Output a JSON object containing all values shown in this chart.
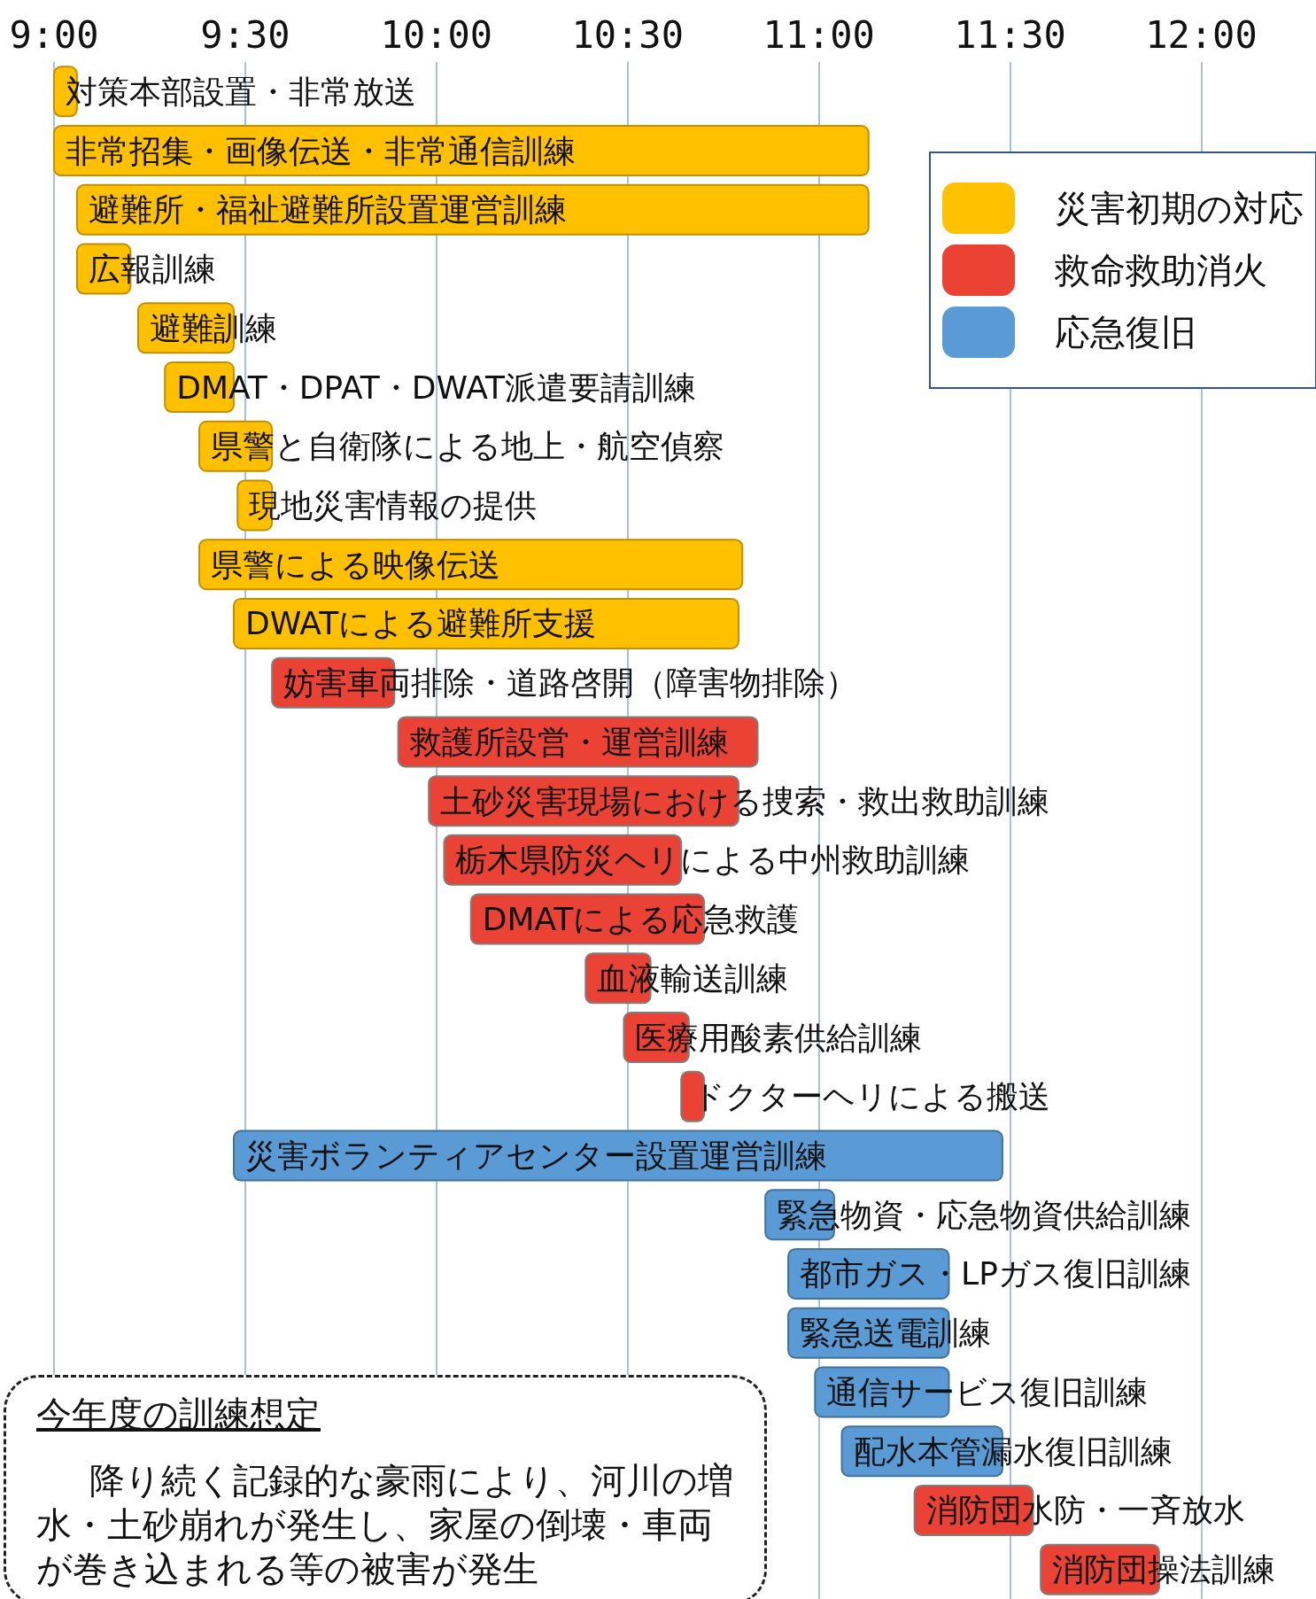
{
  "chart_data": {
    "type": "bar",
    "orientation": "horizontal",
    "tick_labels": "x",
    "grid": "x",
    "legend": "top right",
    "categories": [
      "対策本部設置・非常放送",
      "非常招集・画像伝送・非常通信訓練",
      "避難所・福祉避難所設置運営訓練",
      "広報訓練",
      "避難訓練",
      "DMAT・DPAT・DWAT派遣要請訓練",
      "県警と自衛隊による地上・航空偵察",
      "現地災害情報の提供",
      "県警による映像伝送",
      "DWATによる避難所支援",
      "妨害車両排除・道路啓開（障害物排除）",
      "救護所設営・運営訓練",
      "土砂災害現場における捜索・救出救助訓練",
      "栃木県防災ヘリによる中州救助訓練",
      "DMATによる応急救護",
      "血液輸送訓練",
      "医療用酸素供給訓練",
      "ドクターヘリによる搬送",
      "災害ボランティアセンター設置運営訓練",
      "緊急物資・応急物資供給訓練",
      "都市ガス・LPガス復旧訓練",
      "緊急送電訓練",
      "通信サービス復旧訓練",
      "配水本管漏水復旧訓練",
      "消防団水防・一斉放水",
      "消防団操法訓練"
    ],
    "series": [
      {
        "name": "災害初期の対応",
        "color": "#ffc000",
        "base": [
          9,
          9,
          9.06,
          9.06,
          9.22,
          9.29,
          9.38,
          9.48,
          9.38,
          9.47,
          null,
          null,
          null,
          null,
          null,
          null,
          null,
          null,
          null,
          null,
          null,
          null,
          null,
          null,
          null,
          null
        ],
        "values": [
          0.06,
          2.13,
          2.07,
          0.14,
          0.25,
          0.18,
          0.19,
          0.09,
          1.42,
          1.32,
          null,
          null,
          null,
          null,
          null,
          null,
          null,
          null,
          null,
          null,
          null,
          null,
          null,
          null,
          null,
          null
        ]
      },
      {
        "name": "救命救助消火",
        "color": "#ea4335",
        "base": [
          null,
          null,
          null,
          null,
          null,
          null,
          null,
          null,
          null,
          null,
          9.57,
          9.9,
          9.98,
          10.02,
          10.09,
          10.39,
          10.49,
          10.64,
          null,
          null,
          null,
          null,
          null,
          null,
          11.25,
          11.58
        ],
        "values": [
          null,
          null,
          null,
          null,
          null,
          null,
          null,
          null,
          null,
          null,
          0.32,
          0.94,
          0.81,
          0.62,
          0.61,
          0.17,
          0.17,
          0.06,
          null,
          null,
          null,
          null,
          null,
          null,
          0.31,
          0.31
        ]
      },
      {
        "name": "応急復旧",
        "color": "#5b9bd5",
        "base": [
          null,
          null,
          null,
          null,
          null,
          null,
          null,
          null,
          null,
          null,
          null,
          null,
          null,
          null,
          null,
          null,
          null,
          null,
          9.47,
          10.86,
          10.92,
          10.92,
          10.99,
          11.06,
          null,
          null
        ],
        "values": [
          null,
          null,
          null,
          null,
          null,
          null,
          null,
          null,
          null,
          null,
          null,
          null,
          null,
          null,
          null,
          null,
          null,
          null,
          2.01,
          0.18,
          0.42,
          0.42,
          0.35,
          0.42,
          null,
          null
        ]
      }
    ],
    "xlim": [
      9,
      12.3
    ],
    "xticks": [
      {
        "value": 9,
        "label": "9:00"
      },
      {
        "value": 9.5,
        "label": "9:30"
      },
      {
        "value": 10,
        "label": "10:00"
      },
      {
        "value": 10.5,
        "label": "10:30"
      },
      {
        "value": 11,
        "label": "11:00"
      },
      {
        "value": 11.5,
        "label": "11:30"
      },
      {
        "value": 12,
        "label": "12:00"
      }
    ],
    "annotations": [
      "今年度の訓練想定",
      "降り続く記録的な豪雨により、河川の増水・土砂崩れが発生し、家屋の倒壊・車両が巻き込まれる等の被害が発生"
    ]
  }
}
